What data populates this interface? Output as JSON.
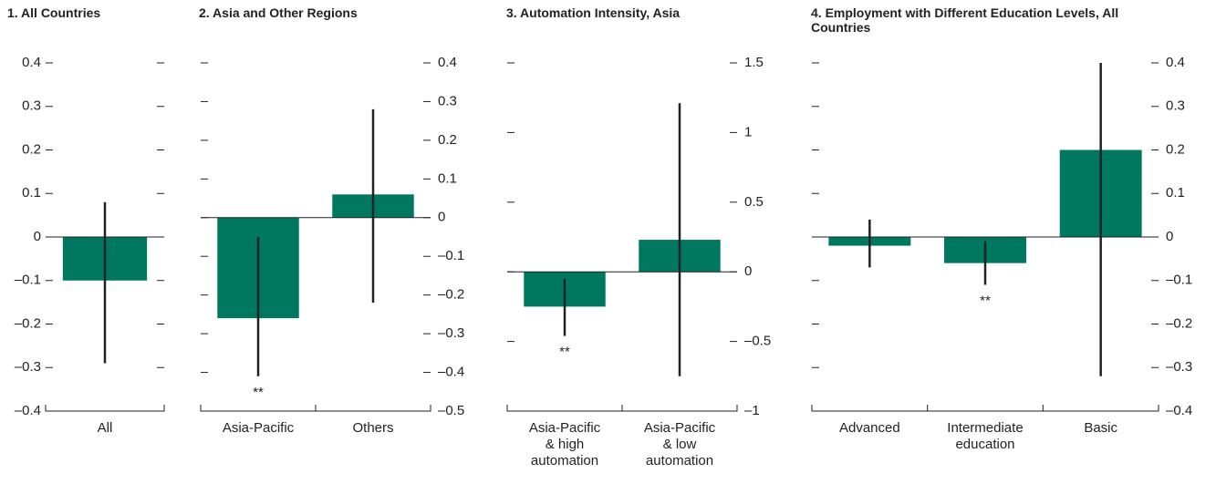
{
  "chart_data": [
    {
      "type": "bar",
      "title": "1. All Countries",
      "categories": [
        "All"
      ],
      "values": [
        -0.1
      ],
      "ci_low": [
        -0.29
      ],
      "ci_high": [
        0.08
      ],
      "annotations": [
        null
      ],
      "color": "#00775f",
      "axis_side": "left",
      "ylim": [
        -0.4,
        0.4
      ],
      "yticks": [
        0.4,
        0.3,
        0.2,
        0.1,
        0,
        {
          "value": -0.1,
          "label": "–0.1"
        },
        {
          "value": -0.2,
          "label": "–0.2"
        },
        {
          "value": -0.3,
          "label": "–0.3"
        },
        {
          "value": -0.4,
          "label": "–0.4"
        }
      ]
    },
    {
      "type": "bar",
      "title": "2. Asia and Other Regions",
      "categories": [
        "Asia-Pacific",
        "Others"
      ],
      "values": [
        -0.26,
        0.06
      ],
      "ci_low": [
        -0.41,
        -0.22
      ],
      "ci_high": [
        -0.05,
        0.28
      ],
      "annotations": [
        "**",
        null
      ],
      "color": "#00775f",
      "axis_side": "right",
      "ylim": [
        -0.5,
        0.4
      ],
      "yticks": [
        0.4,
        0.3,
        0.2,
        0.1,
        0,
        {
          "value": -0.1,
          "label": "–0.1"
        },
        {
          "value": -0.2,
          "label": "–0.2"
        },
        {
          "value": -0.3,
          "label": "–0.3"
        },
        {
          "value": -0.4,
          "label": "–0.4"
        },
        {
          "value": -0.5,
          "label": "–0.5"
        }
      ]
    },
    {
      "type": "bar",
      "title": "3. Automation Intensity, Asia",
      "categories": [
        "Asia-Pacific\n& high\nautomation",
        "Asia-Pacific\n& low\nautomation"
      ],
      "values": [
        -0.25,
        0.23
      ],
      "ci_low": [
        -0.46,
        -0.75
      ],
      "ci_high": [
        -0.05,
        1.21
      ],
      "annotations": [
        "**",
        null
      ],
      "color": "#00775f",
      "axis_side": "right",
      "ylim": [
        -1,
        1.5
      ],
      "yticks": [
        1.5,
        1,
        0.5,
        0,
        {
          "value": -0.5,
          "label": "–0.5"
        },
        {
          "value": -1,
          "label": "–1"
        }
      ]
    },
    {
      "type": "bar",
      "title": "4. Employment with Different Education Levels, All Countries",
      "categories": [
        "Advanced",
        "Intermediate\neducation",
        "Basic"
      ],
      "values": [
        -0.02,
        -0.06,
        0.2
      ],
      "ci_low": [
        -0.07,
        -0.11,
        -0.32
      ],
      "ci_high": [
        0.04,
        -0.01,
        0.4
      ],
      "annotations": [
        null,
        "**",
        null
      ],
      "color": "#00775f",
      "axis_side": "right",
      "ylim": [
        -0.4,
        0.4
      ],
      "yticks": [
        0.4,
        0.3,
        0.2,
        0.1,
        0,
        {
          "value": -0.1,
          "label": "–0.1"
        },
        {
          "value": -0.2,
          "label": "–0.2"
        },
        {
          "value": -0.3,
          "label": "–0.3"
        },
        {
          "value": -0.4,
          "label": "–0.4"
        }
      ]
    }
  ]
}
